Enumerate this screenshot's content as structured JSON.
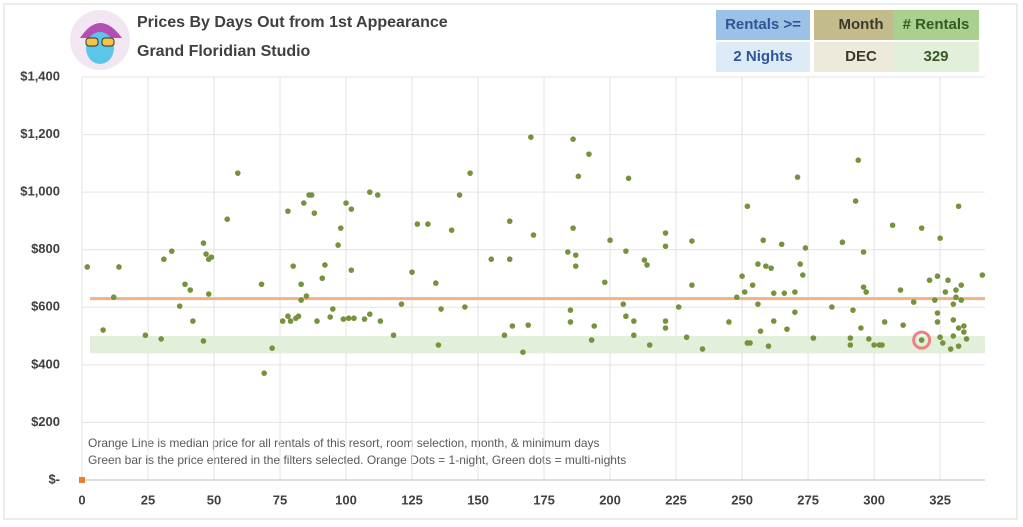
{
  "header": {
    "title": "Prices By Days Out from 1st Appearance",
    "subtitle": "Grand Floridian Studio",
    "filters": [
      {
        "label": "Rentals >=",
        "value": "2 Nights"
      },
      {
        "label": "Month",
        "value": "DEC"
      },
      {
        "label": "# Rentals",
        "value": "329"
      }
    ]
  },
  "chart_data": {
    "type": "scatter",
    "notes": [
      "Orange Line is median price for all rentals of this resort, room selection, month, & minimum days",
      "Green bar is the price entered in the filters selected. Orange Dots = 1-night, Green dots = multi-nights"
    ],
    "xlim": [
      0,
      342
    ],
    "xticks": [
      0,
      25,
      50,
      75,
      100,
      125,
      150,
      175,
      200,
      225,
      250,
      275,
      300,
      325
    ],
    "ylim": [
      0,
      1400
    ],
    "yticks": [
      {
        "value": 0,
        "label": "$-"
      },
      {
        "value": 200,
        "label": "$200"
      },
      {
        "value": 400,
        "label": "$400"
      },
      {
        "value": 600,
        "label": "$600"
      },
      {
        "value": 800,
        "label": "$800"
      },
      {
        "value": 1000,
        "label": "$1,000"
      },
      {
        "value": 1200,
        "label": "$1,200"
      },
      {
        "value": 1400,
        "label": "$1,400"
      }
    ],
    "grid": true,
    "median": 630,
    "median_color": "#f4b183",
    "band": [
      440,
      500
    ],
    "band_color": "#e2efda",
    "highlight": {
      "x": 318,
      "y": 486,
      "color": "#f08080"
    },
    "series": [
      {
        "color": "#76923c",
        "x": [
          2,
          8,
          12,
          14,
          24,
          30,
          31,
          34,
          37,
          39,
          41,
          42,
          46,
          46,
          47,
          48,
          48,
          49,
          55,
          59,
          68,
          69,
          72,
          76,
          78,
          78,
          79,
          80,
          81,
          82,
          83,
          83,
          84,
          85,
          86,
          87,
          88,
          89,
          91,
          92,
          94,
          95,
          97,
          98,
          99,
          100,
          101,
          102,
          102,
          103,
          107,
          109,
          109,
          112,
          113,
          118,
          121,
          125,
          127,
          131,
          134,
          135,
          136,
          140,
          143,
          145,
          147,
          155,
          160,
          162,
          162,
          163,
          167,
          169,
          170,
          171,
          184,
          185,
          185,
          186,
          186,
          187,
          187,
          188,
          192,
          193,
          194,
          198,
          200,
          205,
          206,
          206,
          207,
          209,
          209,
          215,
          213,
          214,
          221,
          221,
          221,
          221,
          226,
          229,
          231,
          231,
          235,
          245,
          248,
          250,
          251,
          252,
          252,
          253,
          254,
          256,
          256,
          257,
          258,
          259,
          260,
          261,
          262,
          262,
          265,
          266,
          267,
          270,
          270,
          271,
          272,
          273,
          274,
          277,
          284,
          288,
          291,
          291,
          292,
          293,
          294,
          295,
          296,
          296,
          297,
          298,
          300,
          302,
          303,
          304,
          307,
          310,
          311,
          315,
          318,
          318,
          321,
          323,
          324,
          325,
          324,
          324,
          325,
          326,
          327,
          328,
          329,
          330,
          330,
          330,
          331,
          331,
          332,
          332,
          332,
          333,
          333,
          334,
          334,
          335,
          341
        ],
        "values": [
          740,
          521,
          635,
          740,
          503,
          490,
          767,
          795,
          604,
          680,
          660,
          552,
          823,
          483,
          785,
          767,
          646,
          774,
          906,
          1066,
          680,
          371,
          458,
          552,
          569,
          934,
          552,
          743,
          562,
          569,
          625,
          680,
          962,
          639,
          990,
          990,
          927,
          552,
          701,
          747,
          566,
          594,
          816,
          875,
          559,
          962,
          562,
          941,
          729,
          562,
          559,
          1000,
          576,
          990,
          552,
          503,
          611,
          722,
          889,
          889,
          684,
          469,
          594,
          868,
          990,
          601,
          1066,
          767,
          503,
          767,
          899,
          535,
          444,
          538,
          1191,
          851,
          792,
          549,
          590,
          1184,
          875,
          781,
          743,
          1055,
          1132,
          486,
          535,
          687,
          833,
          611,
          795,
          569,
          1048,
          552,
          503,
          469,
          764,
          747,
          858,
          812,
          552,
          528,
          601,
          496,
          830,
          677,
          455,
          549,
          635,
          708,
          653,
          951,
          476,
          476,
          677,
          611,
          750,
          517,
          833,
          743,
          465,
          736,
          552,
          649,
          819,
          649,
          524,
          583,
          653,
          1052,
          750,
          712,
          806,
          493,
          601,
          826,
          493,
          469,
          590,
          969,
          1111,
          528,
          792,
          670,
          653,
          490,
          469,
          469,
          469,
          549,
          885,
          660,
          538,
          618,
          875,
          486,
          694,
          625,
          708,
          840,
          580,
          549,
          496,
          476,
          653,
          694,
          455,
          500,
          611,
          556,
          635,
          660,
          951,
          528,
          465,
          677,
          625,
          535,
          514,
          490,
          712
        ]
      },
      {
        "color": "#ed7d31",
        "x": [
          0
        ],
        "values": [
          0
        ]
      }
    ]
  }
}
